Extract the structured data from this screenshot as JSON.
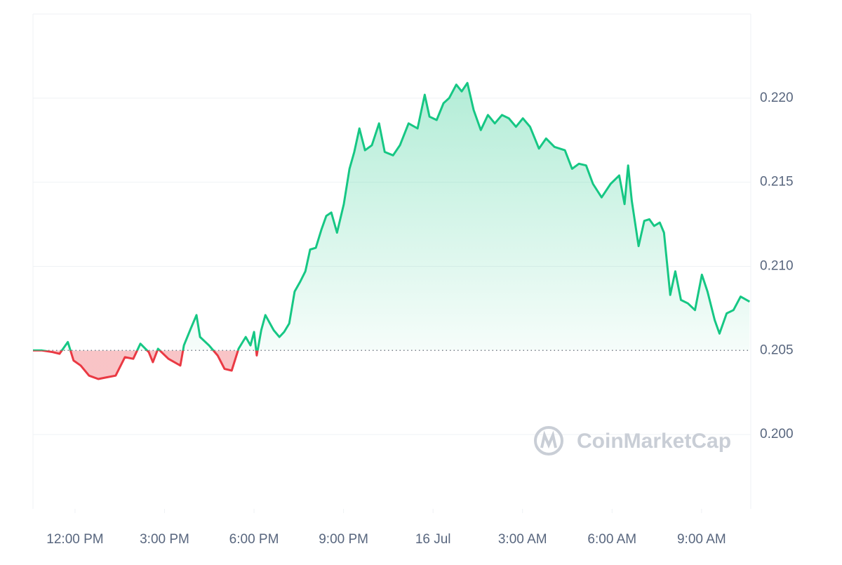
{
  "chart_data": {
    "type": "line",
    "watermark": "CoinMarketCap",
    "baseline": 0.205,
    "color_up": "#16c784",
    "color_down": "#ea3943",
    "grid": true,
    "xlim": [
      -1.41,
      22.65
    ],
    "ylim": [
      0.19558,
      0.225
    ],
    "xticks": [
      {
        "value": 0,
        "label": "12:00 PM"
      },
      {
        "value": 3,
        "label": "3:00 PM"
      },
      {
        "value": 6,
        "label": "6:00 PM"
      },
      {
        "value": 9,
        "label": "9:00 PM"
      },
      {
        "value": 12,
        "label": "16 Jul"
      },
      {
        "value": 15,
        "label": "3:00 AM"
      },
      {
        "value": 18,
        "label": "6:00 AM"
      },
      {
        "value": 21,
        "label": "9:00 AM"
      }
    ],
    "yticks": [
      {
        "value": 0.2,
        "label": "0.200"
      },
      0.205,
      {
        "value": 0.21,
        "label": "0.210"
      },
      0.215,
      {
        "value": 0.22,
        "label": "0.220"
      }
    ],
    "x": [
      -1.41,
      -1.11,
      -0.75,
      -0.52,
      -0.24,
      -0.05,
      0.19,
      0.47,
      0.78,
      1.06,
      1.36,
      1.67,
      1.95,
      2.19,
      2.47,
      2.61,
      2.78,
      3.13,
      3.53,
      3.65,
      3.88,
      4.07,
      4.19,
      4.49,
      4.78,
      5.01,
      5.25,
      5.48,
      5.72,
      5.88,
      6.0,
      6.09,
      6.24,
      6.38,
      6.66,
      6.85,
      7.01,
      7.18,
      7.36,
      7.55,
      7.72,
      7.88,
      8.07,
      8.26,
      8.42,
      8.59,
      8.78,
      9.01,
      9.2,
      9.36,
      9.53,
      9.72,
      9.95,
      10.19,
      10.38,
      10.66,
      10.89,
      11.18,
      11.48,
      11.72,
      11.88,
      12.12,
      12.35,
      12.54,
      12.78,
      12.96,
      13.15,
      13.36,
      13.6,
      13.84,
      14.07,
      14.31,
      14.54,
      14.78,
      15.01,
      15.25,
      15.55,
      15.79,
      16.07,
      16.42,
      16.66,
      16.89,
      17.13,
      17.36,
      17.65,
      17.95,
      18.24,
      18.42,
      18.54,
      18.66,
      18.89,
      19.08,
      19.25,
      19.41,
      19.6,
      19.74,
      19.95,
      20.12,
      20.31,
      20.54,
      20.78,
      21.01,
      21.2,
      21.44,
      21.6,
      21.84,
      22.07,
      22.31,
      22.61
    ],
    "values": [
      0.205,
      0.205,
      0.2049,
      0.2048,
      0.2055,
      0.2044,
      0.2041,
      0.2035,
      0.2033,
      0.2034,
      0.2035,
      0.2046,
      0.2045,
      0.2054,
      0.2049,
      0.2043,
      0.2051,
      0.2045,
      0.2041,
      0.2053,
      0.2063,
      0.2071,
      0.2058,
      0.2053,
      0.2047,
      0.2039,
      0.2038,
      0.2051,
      0.2058,
      0.2053,
      0.2061,
      0.2047,
      0.2062,
      0.2071,
      0.2062,
      0.2058,
      0.2061,
      0.2066,
      0.2085,
      0.2091,
      0.2097,
      0.211,
      0.2111,
      0.2122,
      0.213,
      0.2132,
      0.212,
      0.2137,
      0.2158,
      0.2168,
      0.2182,
      0.2169,
      0.2172,
      0.2185,
      0.2168,
      0.2166,
      0.2172,
      0.2185,
      0.2182,
      0.2202,
      0.2189,
      0.2187,
      0.2197,
      0.22,
      0.2208,
      0.2204,
      0.2209,
      0.2193,
      0.2181,
      0.219,
      0.2185,
      0.219,
      0.2188,
      0.2183,
      0.2188,
      0.2183,
      0.217,
      0.2176,
      0.2171,
      0.2169,
      0.2158,
      0.2161,
      0.216,
      0.2149,
      0.2141,
      0.2149,
      0.2154,
      0.2137,
      0.216,
      0.2139,
      0.2112,
      0.2127,
      0.2128,
      0.2124,
      0.2126,
      0.212,
      0.2083,
      0.2097,
      0.208,
      0.2078,
      0.2074,
      0.2095,
      0.2085,
      0.2068,
      0.206,
      0.2072,
      0.2074,
      0.2082,
      0.2079
    ]
  }
}
